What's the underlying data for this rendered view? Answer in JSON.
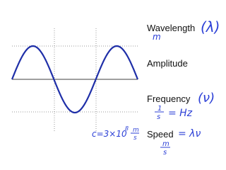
{
  "labels": {
    "wavelength": "Wavelength",
    "amplitude": "Amplitude",
    "frequency": "Frequency",
    "speed": "Speed"
  },
  "annotations": {
    "wavelength_unit": "m",
    "wavelength_symbol": "(λ)",
    "frequency_symbol": "(ν)",
    "frequency_unit": {
      "numerator": "1",
      "denominator": "s",
      "rest": "= Hz"
    },
    "speed_formula": "= λν",
    "speed_unit": {
      "numerator": "m",
      "denominator": "s"
    },
    "speed_of_light": {
      "text": "c=3×10",
      "exponent": "8",
      "numerator": "m",
      "denominator": "s"
    }
  }
}
